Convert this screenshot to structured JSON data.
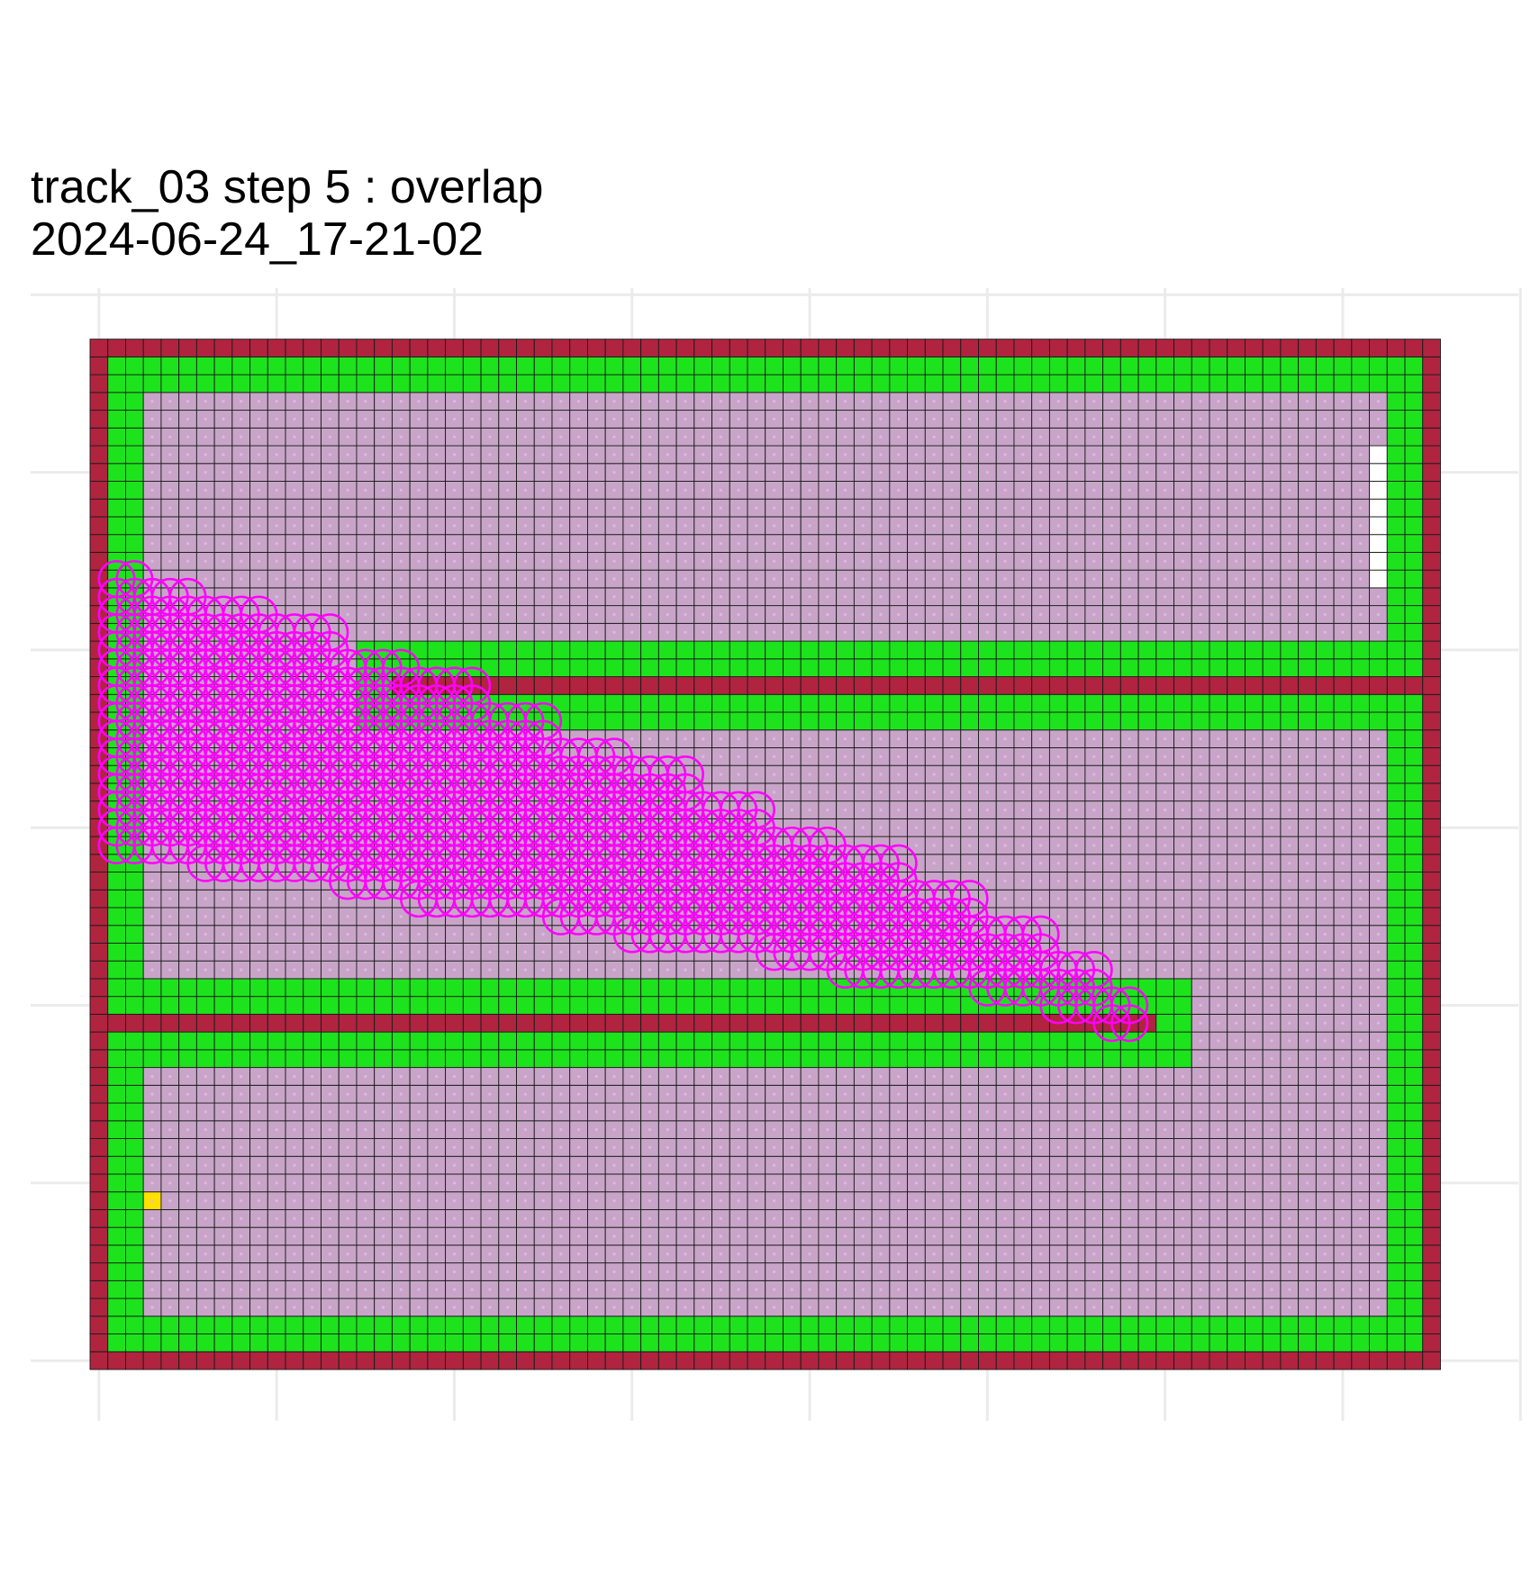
{
  "chart_data": {
    "type": "heatmap",
    "title_line1": "track_03 step 5 : overlap",
    "title_line2": " 2024-06-24_17-21-02",
    "xlabel": "",
    "ylabel": "",
    "grid": true,
    "legend": "none",
    "grid_cols": 76,
    "grid_rows": 58,
    "xlim": [
      -0.5,
      83
    ],
    "ylim": [
      -0.5,
      61.2
    ],
    "major_x": [
      0,
      10,
      20,
      30,
      40,
      50,
      60,
      70,
      80
    ],
    "major_y": [
      0,
      10,
      20,
      30,
      40,
      50,
      60
    ],
    "colors": {
      "wall": "#B0243F",
      "buffer": "#1DE31D",
      "free": "#C8A5C8",
      "marker": "#FFE000",
      "circle": "#FF00FF",
      "cell_line": "#1a1a1a",
      "light_point": "#E6B8E6",
      "white_gap": "#FFFFFF"
    },
    "regions": {
      "outer_wall": {
        "col0": 0,
        "col1": 75,
        "row0": 0,
        "row1": 57
      },
      "upper_wall": {
        "col0": 17,
        "col1": 75,
        "row_wall": 38,
        "buffer_cols": [
          16,
          74
        ],
        "buffer_rows": [
          37,
          39
        ]
      },
      "lower_wall": {
        "col0": 1,
        "col1": 59,
        "row_wall": 19,
        "buffer_col_end": 61,
        "buffer_rows": [
          18,
          20
        ]
      },
      "white_gap": {
        "col": 72,
        "row0": 44,
        "row1": 51
      },
      "marker": {
        "col": 3,
        "row": 9
      }
    },
    "circles": {
      "label": "overlap",
      "radius_cells": 1,
      "band": [
        {
          "col0": 1,
          "col1": 2,
          "top": 44,
          "bottom": 29
        },
        {
          "col0": 3,
          "col1": 5,
          "top": 43,
          "bottom": 29
        },
        {
          "col0": 6,
          "col1": 9,
          "top": 42,
          "bottom": 28
        },
        {
          "col0": 10,
          "col1": 13,
          "top": 41,
          "bottom": 28
        },
        {
          "col0": 14,
          "col1": 17,
          "top": 39,
          "bottom": 27
        },
        {
          "col0": 18,
          "col1": 21,
          "top": 38,
          "bottom": 26
        },
        {
          "col0": 22,
          "col1": 25,
          "top": 36,
          "bottom": 26
        },
        {
          "col0": 26,
          "col1": 29,
          "top": 34,
          "bottom": 25
        },
        {
          "col0": 30,
          "col1": 33,
          "top": 33,
          "bottom": 24
        },
        {
          "col0": 34,
          "col1": 37,
          "top": 31,
          "bottom": 24
        },
        {
          "col0": 38,
          "col1": 41,
          "top": 29,
          "bottom": 23
        },
        {
          "col0": 42,
          "col1": 45,
          "top": 28,
          "bottom": 22
        },
        {
          "col0": 46,
          "col1": 49,
          "top": 26,
          "bottom": 22
        },
        {
          "col0": 50,
          "col1": 53,
          "top": 24,
          "bottom": 21
        },
        {
          "col0": 54,
          "col1": 56,
          "top": 22,
          "bottom": 20
        },
        {
          "col0": 57,
          "col1": 58,
          "top": 20,
          "bottom": 19
        }
      ]
    }
  }
}
